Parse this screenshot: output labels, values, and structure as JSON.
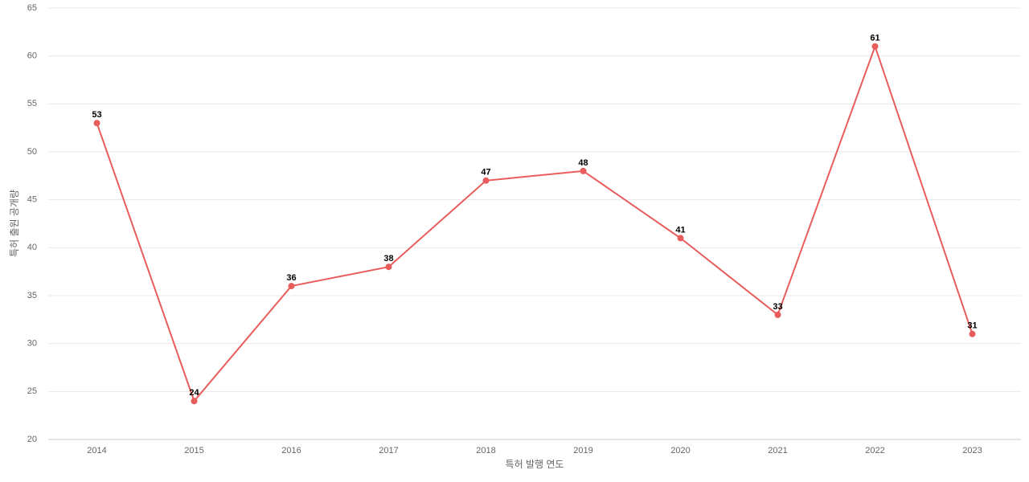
{
  "chart_data": {
    "type": "line",
    "x_label": "특허 발행 연도",
    "y_label": "특허 출원 공개량",
    "categories": [
      "2014",
      "2015",
      "2016",
      "2017",
      "2018",
      "2019",
      "2020",
      "2021",
      "2022",
      "2023"
    ],
    "values": [
      53,
      24,
      36,
      38,
      47,
      48,
      41,
      33,
      61,
      31
    ],
    "color": "#e85c5c",
    "ylim": [
      20,
      65
    ],
    "yticks": [
      20,
      25,
      30,
      35,
      40,
      45,
      50,
      55,
      60,
      65
    ],
    "grid": true
  }
}
